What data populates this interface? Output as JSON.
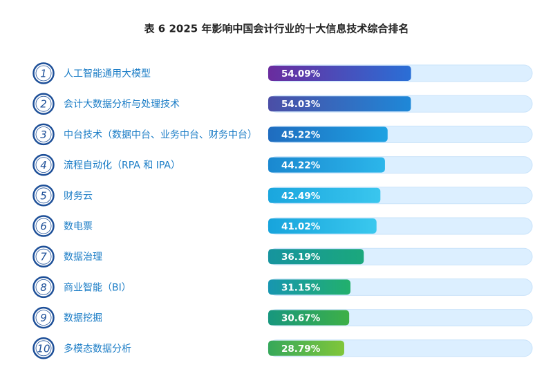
{
  "chart_data": {
    "type": "bar",
    "orientation": "horizontal",
    "title": "表 6  2025 年影响中国会计行业的十大信息技术综合排名",
    "ranks": [
      1,
      2,
      3,
      4,
      5,
      6,
      7,
      8,
      9,
      10
    ],
    "categories": [
      "人工智能通用大模型",
      "会计大数据分析与处理技术",
      "中台技术（数据中台、业务中台、财务中台）",
      "流程自动化（RPA 和 IPA）",
      "财务云",
      "数电票",
      "数据治理",
      "商业智能（BI）",
      "数据挖掘",
      "多模态数据分析"
    ],
    "values": [
      54.09,
      54.03,
      45.22,
      44.22,
      42.49,
      41.02,
      36.19,
      31.15,
      30.67,
      28.79
    ],
    "value_labels": [
      "54.09%",
      "54.03%",
      "45.22%",
      "44.22%",
      "42.49%",
      "41.02%",
      "36.19%",
      "31.15%",
      "30.67%",
      "28.79%"
    ],
    "gradient_colors": [
      [
        "#6a2c9e",
        "#2a6fd6"
      ],
      [
        "#4b4ea6",
        "#1e88d8"
      ],
      [
        "#1f6cbf",
        "#1ea2e2"
      ],
      [
        "#1a88d0",
        "#2cb6ea"
      ],
      [
        "#1aa6de",
        "#3ac6ee"
      ],
      [
        "#17a4dc",
        "#3ac8ee"
      ],
      [
        "#16949e",
        "#1ba87c"
      ],
      [
        "#1796b0",
        "#22b06c"
      ],
      [
        "#17977e",
        "#3eb046"
      ],
      [
        "#36a85a",
        "#80c63a"
      ]
    ],
    "track_color": "#dcefff",
    "xlim": [
      0,
      100
    ]
  }
}
